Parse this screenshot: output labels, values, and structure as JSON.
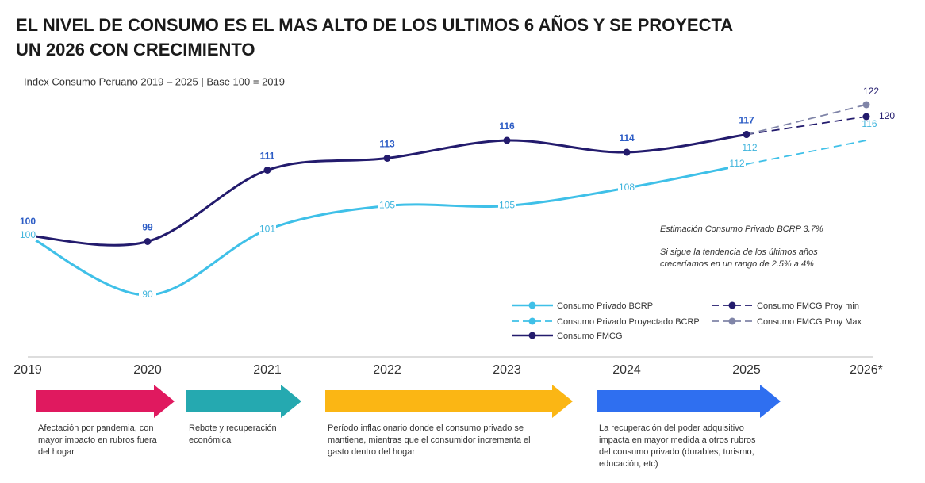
{
  "chart_data": {
    "type": "line",
    "title": [
      "EL NIVEL DE CONSUMO ES EL MAS ALTO DE LOS ULTIMOS 6 AÑOS Y SE PROYECTA",
      "UN 2026 CON CRECIMIENTO"
    ],
    "subtitle": "Index Consumo Peruano 2019 – 2025 | Base 100 = 2019",
    "categories": [
      "2019",
      "2020",
      "2021",
      "2022",
      "2023",
      "2024",
      "2025",
      "2026*"
    ],
    "series": [
      {
        "name": "Consumo Privado BCRP",
        "color": "#3fc0e8",
        "dashed": false,
        "markers": false,
        "values": [
          100,
          90,
          101,
          105,
          105,
          108,
          112,
          null
        ]
      },
      {
        "name": "Consumo Privado Proyectado BCRP",
        "color": "#3fc0e8",
        "dashed": true,
        "markers": false,
        "values": [
          null,
          null,
          null,
          null,
          null,
          null,
          112,
          116
        ],
        "value_labels": [
          null,
          null,
          null,
          null,
          null,
          null,
          "112",
          "116"
        ]
      },
      {
        "name": "Consumo FMCG",
        "color": "#231b6d",
        "dashed": false,
        "markers": true,
        "values": [
          100,
          99,
          111,
          113,
          116,
          114,
          117,
          null
        ]
      },
      {
        "name": "Consumo FMCG Proy min",
        "color": "#231b6d",
        "dashed": true,
        "markers": true,
        "values": [
          null,
          null,
          null,
          null,
          null,
          null,
          117,
          120
        ],
        "value_labels": [
          null,
          null,
          null,
          null,
          null,
          null,
          null,
          "120"
        ]
      },
      {
        "name": "Consumo FMCG Proy Max",
        "color": "#8085a8",
        "dashed": true,
        "markers": true,
        "values": [
          null,
          null,
          null,
          null,
          null,
          null,
          117,
          122
        ],
        "value_labels": [
          null,
          null,
          null,
          null,
          null,
          null,
          null,
          "122"
        ]
      }
    ],
    "annotations": [
      "Estimación Consumo Privado BCRP 3.7%",
      "Si sigue la tendencia de los últimos años",
      "creceríamos en un rango de 2.5% a 4%"
    ],
    "phases": [
      {
        "color": "#e0195f",
        "text": [
          "Afectación por pandemia, con",
          "mayor impacto en rubros fuera",
          "del hogar"
        ]
      },
      {
        "color": "#25a9b0",
        "text": [
          "Rebote y recuperación",
          "económica"
        ]
      },
      {
        "color": "#fbb614",
        "text": [
          "Período inflacionario donde el consumo privado se",
          "mantiene, mientras que el consumidor incrementa el",
          "gasto dentro del hogar"
        ]
      },
      {
        "color": "#2f6ff0",
        "text": [
          "La recuperación del poder adquisitivo",
          "impacta en mayor medida a otros rubros",
          "del consumo privado (durables, turismo,",
          "educación, etc)"
        ]
      }
    ]
  }
}
